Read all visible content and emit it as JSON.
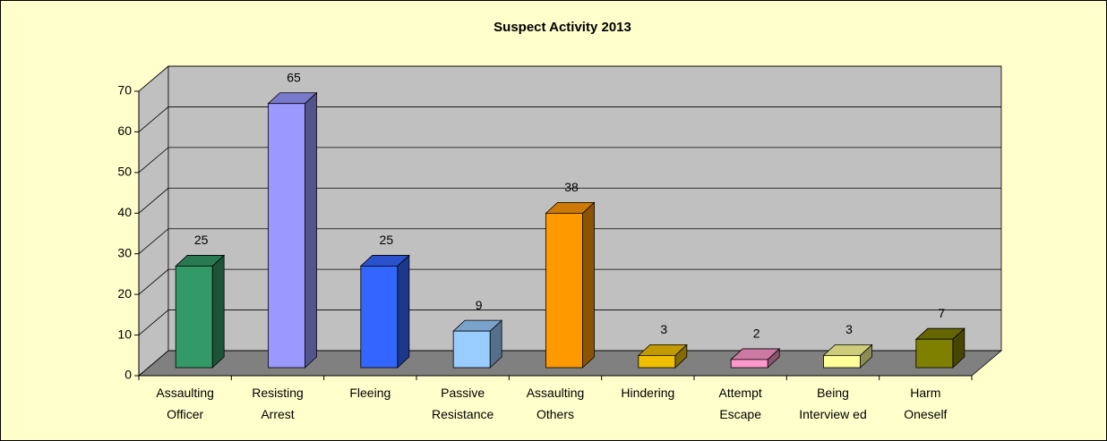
{
  "chart_data": {
    "type": "bar3d",
    "title": "Suspect Activity 2013",
    "categories": [
      "Assaulting\nOfficer",
      "Resisting\nArrest",
      "Fleeing",
      "Passive\nResistance",
      "Assaulting\nOthers",
      "Hindering",
      "Attempt\nEscape",
      "Being\nInterview ed",
      "Harm\nOneself"
    ],
    "values": [
      25,
      65,
      25,
      9,
      38,
      3,
      2,
      3,
      7
    ],
    "colors": [
      "#339966",
      "#9999ff",
      "#3366ff",
      "#99ccff",
      "#ff9900",
      "#f0c000",
      "#ff99cc",
      "#ffff99",
      "#808000"
    ],
    "ylim": [
      0,
      70
    ],
    "yticks": [
      0,
      10,
      20,
      30,
      40,
      50,
      60,
      70
    ],
    "grid": true
  }
}
